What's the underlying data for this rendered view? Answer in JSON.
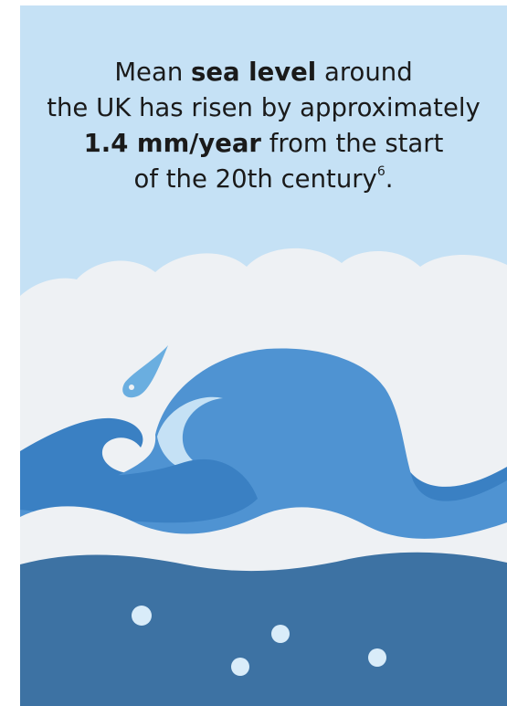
{
  "caption": {
    "line1": {
      "before": "Mean ",
      "bold": "sea level",
      "after": " around"
    },
    "line2": "the UK has risen by approximately",
    "line3": {
      "bold": "1.4 mm/year",
      "after": " from the start"
    },
    "line4": {
      "text": "of the 20th century",
      "superscript": "6",
      "end": "."
    }
  },
  "colors": {
    "sky": "#c5e1f5",
    "cloud": "#eef1f4",
    "wave_light": "#4f93d2",
    "wave_dark": "#3a80c3",
    "sea": "#3d72a3",
    "bubble": "#d9ecf9",
    "droplet": "#6aaee0"
  },
  "icons": [
    "wave-icon",
    "droplet-icon",
    "cloud-icon",
    "bubble-icon"
  ]
}
